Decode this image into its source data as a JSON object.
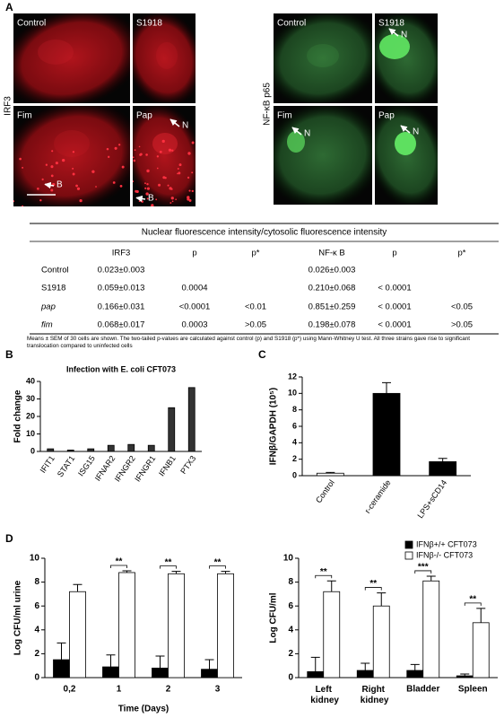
{
  "panel_labels": [
    "A",
    "B",
    "C",
    "D"
  ],
  "microscopy": [
    {
      "stain": "IRF3",
      "images": [
        {
          "label": "Control"
        },
        {
          "label": "S1918"
        },
        {
          "label": "Fim",
          "markers": [
            "B"
          ]
        },
        {
          "label": "Pap",
          "markers": [
            "N",
            "B"
          ]
        }
      ]
    },
    {
      "stain": "NF-κB p65",
      "images": [
        {
          "label": "Control"
        },
        {
          "label": "S1918",
          "markers": [
            "N"
          ]
        },
        {
          "label": "Fim",
          "markers": [
            "N"
          ]
        },
        {
          "label": "Pap",
          "markers": [
            "N"
          ]
        }
      ]
    }
  ],
  "table": {
    "title": "Nuclear fluorescence intensity/cytosolic fluorescence intensity",
    "columns": [
      "IRF3",
      "p",
      "p*",
      "NF-κ B",
      "p",
      "p*"
    ],
    "rows": [
      {
        "label": "Control",
        "cells": [
          "0.023±0.003",
          null,
          null,
          "0.026±0.003",
          null,
          null
        ]
      },
      {
        "label": "S1918",
        "cells": [
          "0.059±0.013",
          "0.0004",
          null,
          "0.210±0.068",
          "< 0.0001",
          null
        ]
      },
      {
        "label": "pap",
        "cells": [
          "0.166±0.031",
          "<0.0001",
          "<0.01",
          "0.851±0.259",
          "< 0.0001",
          "<0.05"
        ]
      },
      {
        "label": "fim",
        "cells": [
          "0.068±0.017",
          "0.0003",
          ">0.05",
          "0.198±0.078",
          "< 0.0001",
          ">0.05"
        ]
      }
    ],
    "note": "Means ± SEM of 30 cells are shown. The two-tailed p-values are calculated against control (p) and S1918 (p*) using Mann-Whitney U test. All three strains gave rise to significant translocation compared to uninfected cells"
  },
  "chart_data": [
    {
      "type": "bar",
      "title": "Infection with E. coli CFT073",
      "ylabel": "Fold change",
      "categories": [
        "IFIT1",
        "STAT1",
        "ISG15",
        "IFNAR2",
        "IFNGR2",
        "IFNGR1",
        "IFNB1",
        "PTX3"
      ],
      "series": [
        {
          "color": "#333333",
          "values": [
            1.5,
            0.8,
            1.5,
            3.5,
            4,
            3.5,
            25,
            36.5
          ]
        }
      ],
      "ylim": [
        0,
        40
      ],
      "yticks": [
        0,
        10,
        20,
        30,
        40
      ]
    },
    {
      "type": "bar",
      "ylabel": "IFNβ/GAPDH (10⁵)",
      "categories": [
        "Control",
        "r-ceramide",
        "LPS+sCD14"
      ],
      "series": [
        {
          "colors": [
            "#ffffff",
            "#000000",
            "#000000"
          ],
          "values": [
            0.3,
            10,
            1.7
          ],
          "errors": [
            0.1,
            1.3,
            0.4
          ]
        }
      ],
      "ylim": [
        0,
        12
      ],
      "yticks": [
        0,
        2,
        4,
        6,
        8,
        10,
        12
      ]
    },
    {
      "type": "bar",
      "ylabel": "Log CFU/ml urine",
      "xlabel": "Time (Days)",
      "categories": [
        "0,2",
        "1",
        "2",
        "3"
      ],
      "series": [
        {
          "name": "IFNβ+/+ CFT073",
          "color": "#000000",
          "values": [
            1.5,
            0.9,
            0.8,
            0.7
          ],
          "errors": [
            1.4,
            1.0,
            1.0,
            0.8
          ]
        },
        {
          "name": "IFNβ-/- CFT073",
          "color": "#ffffff",
          "values": [
            7.2,
            8.8,
            8.7,
            8.7
          ],
          "errors": [
            0.6,
            0.15,
            0.2,
            0.2
          ]
        }
      ],
      "significance": [
        null,
        "**",
        "**",
        "**"
      ],
      "ylim": [
        0,
        10
      ],
      "yticks": [
        0,
        2,
        4,
        6,
        8,
        10
      ]
    },
    {
      "type": "bar",
      "ylabel": "Log CFU/ml",
      "categories": [
        "Left kidney",
        "Right kidney",
        "Bladder",
        "Spleen"
      ],
      "series": [
        {
          "name": "IFNβ+/+ CFT073",
          "color": "#000000",
          "values": [
            0.5,
            0.6,
            0.6,
            0.15
          ],
          "errors": [
            1.2,
            0.6,
            0.5,
            0.15
          ]
        },
        {
          "name": "IFNβ-/- CFT073",
          "color": "#ffffff",
          "values": [
            7.2,
            6.0,
            8.1,
            4.6
          ],
          "errors": [
            0.9,
            1.1,
            0.4,
            1.2
          ]
        }
      ],
      "significance": [
        "**",
        "**",
        "***",
        "**"
      ],
      "legend": "upper right",
      "ylim": [
        0,
        10
      ],
      "yticks": [
        0,
        2,
        4,
        6,
        8,
        10
      ]
    }
  ]
}
